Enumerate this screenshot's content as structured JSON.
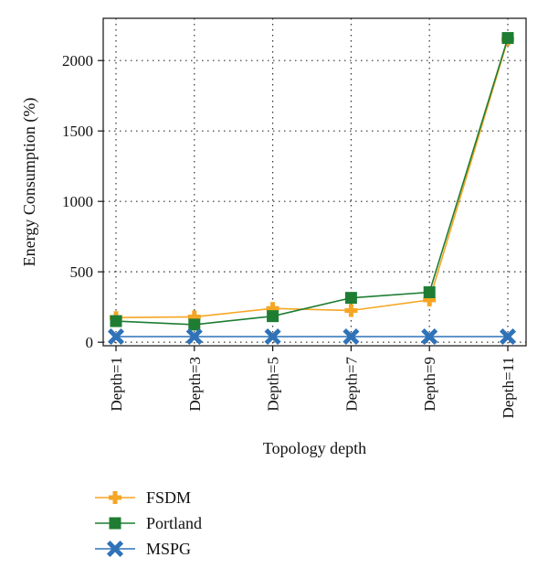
{
  "chart_data": {
    "type": "line",
    "categories": [
      "Depth=1",
      "Depth=3",
      "Depth=5",
      "Depth=7",
      "Depth=9",
      "Depth=11"
    ],
    "series": [
      {
        "name": "FSDM",
        "values": [
          175,
          180,
          240,
          225,
          300,
          2150
        ],
        "color": "#f5a623",
        "marker": "plus"
      },
      {
        "name": "Portland",
        "values": [
          150,
          125,
          185,
          315,
          355,
          2160
        ],
        "color": "#1e7d32",
        "marker": "square"
      },
      {
        "name": "MSPG",
        "values": [
          40,
          40,
          40,
          40,
          40,
          40
        ],
        "color": "#2f72b8",
        "marker": "x"
      }
    ],
    "xlabel": "Topology depth",
    "ylabel": "Energy Consumption (%)",
    "ylim": [
      -25,
      2300
    ],
    "yticks": [
      0,
      500,
      1000,
      1500,
      2000
    ],
    "grid": true,
    "grid_style": "dotted",
    "legend_position": "bottom-left"
  }
}
